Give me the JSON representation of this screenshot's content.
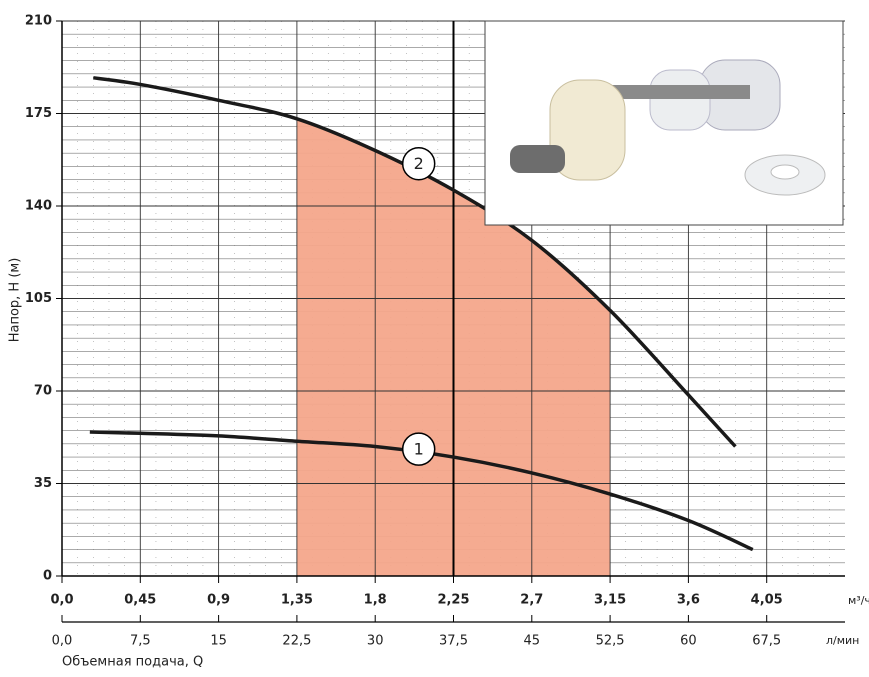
{
  "chart_data": {
    "type": "line",
    "y_label": "Напор, Н (м)",
    "x_unit": "м³/ч",
    "x2_unit": "л/мин",
    "x2_label": "Объемная подача, Q",
    "xlim": [
      0,
      4.5
    ],
    "xticks": [
      {
        "value": 0,
        "label": "0,0"
      },
      {
        "value": 0.45,
        "label": "0,45"
      },
      {
        "value": 0.9,
        "label": "0,9"
      },
      {
        "value": 1.35,
        "label": "1,35"
      },
      {
        "value": 1.8,
        "label": "1,8"
      },
      {
        "value": 2.25,
        "label": "2,25"
      },
      {
        "value": 2.7,
        "label": "2,7"
      },
      {
        "value": 3.15,
        "label": "3,15"
      },
      {
        "value": 3.6,
        "label": "3,6"
      },
      {
        "value": 4.05,
        "label": "4,05"
      }
    ],
    "x2lim": [
      0,
      75
    ],
    "x2ticks": [
      {
        "value": 0,
        "label": "0,0"
      },
      {
        "value": 7.5,
        "label": "7,5"
      },
      15,
      {
        "value": 22.5,
        "label": "22,5"
      },
      30,
      {
        "value": 37.5,
        "label": "37,5"
      },
      45,
      {
        "value": 52.5,
        "label": "52,5"
      },
      60,
      {
        "value": 67.5,
        "label": "67,5"
      }
    ],
    "ylim": [
      0,
      210
    ],
    "yticks": [
      0,
      35,
      70,
      105,
      140,
      175,
      210
    ],
    "grid": true,
    "reference_line_x": 2.25,
    "shaded_range": [
      1.35,
      3.15
    ],
    "shade_color": "#f4a68b",
    "series": [
      {
        "name": "1",
        "color": "#1a1a1a",
        "label_at": [
          2.05,
          48
        ],
        "x": [
          0.16,
          0.45,
          0.9,
          1.35,
          1.8,
          2.25,
          2.7,
          3.15,
          3.6,
          3.97
        ],
        "values": [
          54.5,
          54,
          53,
          51,
          49,
          45,
          39,
          31,
          21,
          10
        ]
      },
      {
        "name": "2",
        "color": "#1a1a1a",
        "label_at": [
          2.05,
          156
        ],
        "x": [
          0.18,
          0.45,
          0.9,
          1.35,
          1.8,
          2.25,
          2.7,
          3.15,
          3.6,
          3.87
        ],
        "values": [
          188.5,
          186,
          180,
          173,
          161,
          146,
          127,
          100.5,
          68.5,
          49
        ]
      }
    ]
  }
}
